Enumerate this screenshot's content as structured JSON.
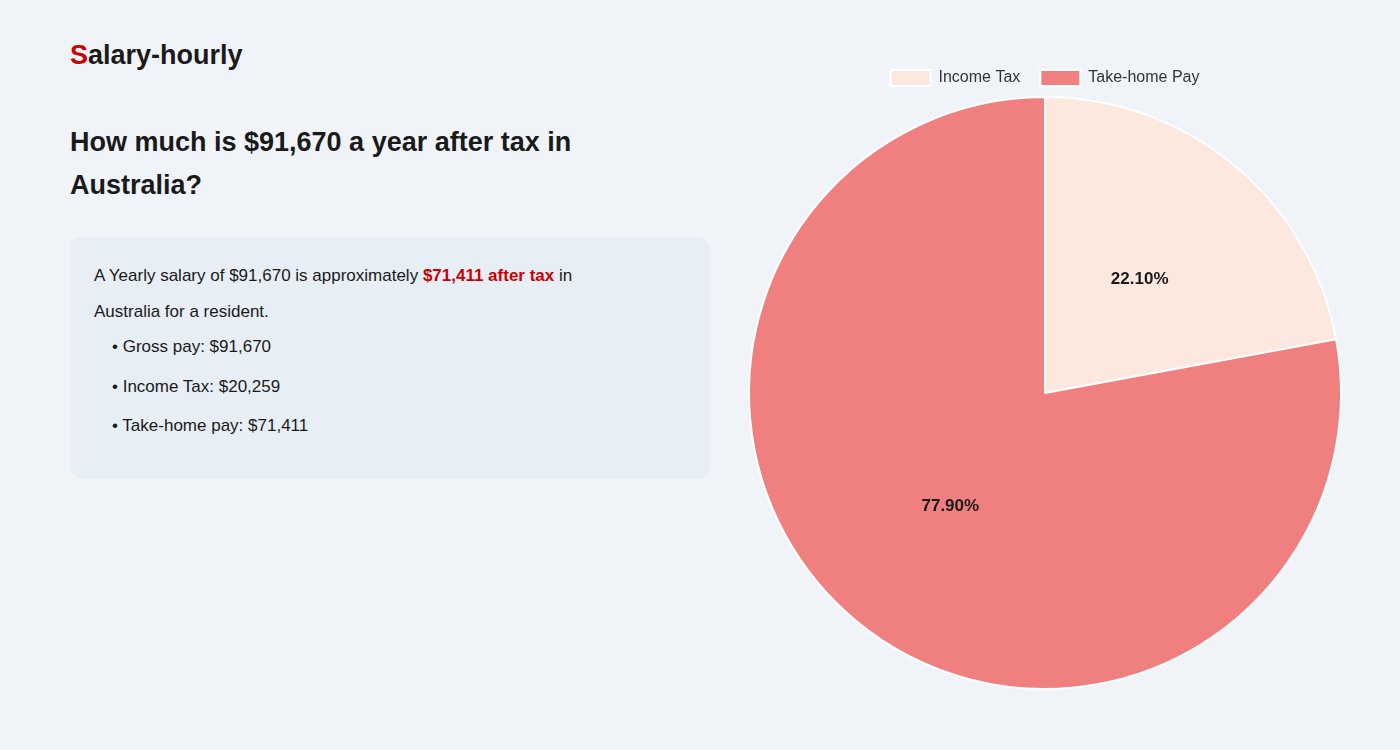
{
  "chart_data": {
    "type": "pie",
    "title": [
      "How much is $91,670 a year after tax in",
      "Australia?"
    ],
    "categories": [
      "Income Tax",
      "Take-home Pay"
    ],
    "values": [
      22.1,
      77.9
    ],
    "value_labels": [
      "22.10%",
      "77.90%"
    ],
    "colors": [
      "#fde8e0",
      "#f08080"
    ],
    "data_labels": true,
    "legend": "top",
    "annotations": [
      [
        {
          "text": "S",
          "color": "#cc0000"
        },
        "alary-hourly"
      ],
      [
        "A Yearly salary of $91,670 is approximately ",
        {
          "text": "$71,411 after tax",
          "color": "#cc0000"
        },
        " in"
      ],
      [
        "Australia for a resident."
      ],
      [
        "• Gross pay: $91,670"
      ],
      [
        "• Income Tax: $20,259"
      ],
      [
        "• Take-home pay: $71,411"
      ]
    ]
  }
}
